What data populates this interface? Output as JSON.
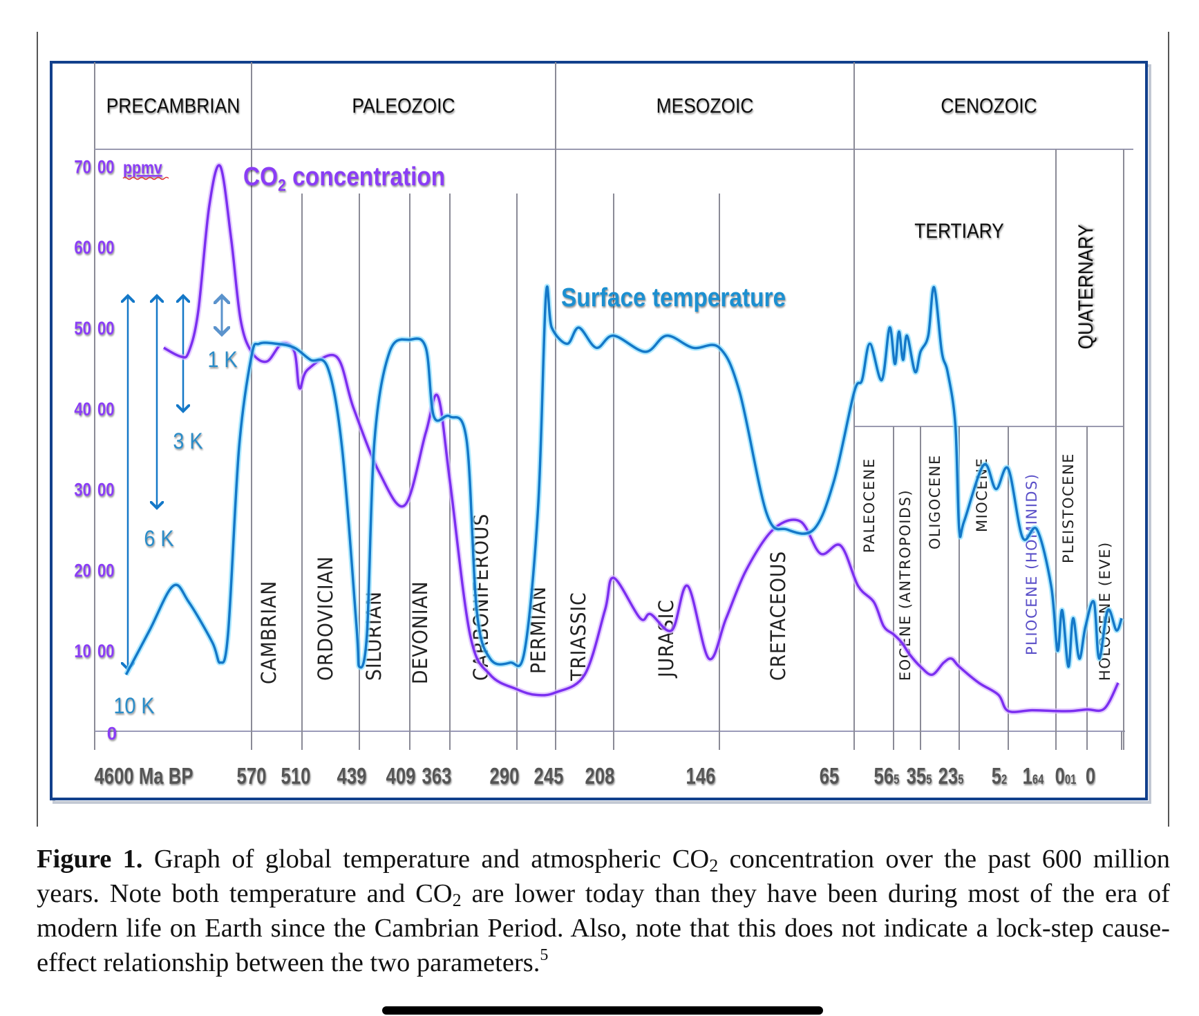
{
  "figure": {
    "caption": {
      "label": "Figure 1.",
      "part1": " Graph of global temperature and atmospheric CO",
      "sub1": "2",
      "part2": " concentration over the past 600 million years. Note both temperature and CO",
      "sub2": "2",
      "part3": " are lower today than they have been during most of the era of modern life on Earth since the Cambrian Period. Also, note that this does not indicate a lock-step cause-effect relationship between the two parameters.",
      "footnote": "5"
    }
  },
  "chart_data": {
    "type": "line",
    "title": "",
    "xlabel": "Ma BP",
    "ylabel": "ppmv",
    "colors": {
      "co2": "#7b2ff0",
      "temperature": "#1478c8",
      "co2_label": "#8a3cf5",
      "temp_label": "#1a8fd0",
      "axis_text": "#555555",
      "ytick_text": "#8a3cf5",
      "frame": "#12408c",
      "grid": "#8a8a96"
    },
    "eras": [
      {
        "name": "PRECAMBRIAN",
        "from_tick": 0,
        "to_tick": 1
      },
      {
        "name": "PALEOZOIC",
        "from_tick": 1,
        "to_tick": 7
      },
      {
        "name": "MESOZOIC",
        "from_tick": 7,
        "to_tick": 10
      },
      {
        "name": "CENOZOIC",
        "from_tick": 10,
        "to_tick": 17
      }
    ],
    "suberas": [
      {
        "name": "TERTIARY",
        "from_tick": 10,
        "to_tick": 15,
        "orientation": "horizontal"
      },
      {
        "name": "QUATERNARY",
        "from_tick": 15,
        "to_tick": 17,
        "orientation": "vertical"
      }
    ],
    "periods": [
      {
        "name": "CAMBRIAN",
        "from_tick": 1,
        "to_tick": 2
      },
      {
        "name": "ORDOVICIAN",
        "from_tick": 2,
        "to_tick": 3
      },
      {
        "name": "SILURIAN",
        "from_tick": 3,
        "to_tick": 4
      },
      {
        "name": "DEVONIAN",
        "from_tick": 4,
        "to_tick": 5
      },
      {
        "name": "CARBONIFEROUS",
        "from_tick": 5,
        "to_tick": 6
      },
      {
        "name": "PERMIAN",
        "from_tick": 6,
        "to_tick": 7
      },
      {
        "name": "TRIASSIC",
        "from_tick": 7,
        "to_tick": 8
      },
      {
        "name": "JURASIC",
        "from_tick": 8,
        "to_tick": 9
      },
      {
        "name": "CRETACEOUS",
        "from_tick": 9,
        "to_tick": 10
      }
    ],
    "epochs": [
      {
        "name": "PALEOCENE",
        "from_tick": 10,
        "to_tick": 11
      },
      {
        "name": "EOCENE (ANTROPOIDS)",
        "from_tick": 11,
        "to_tick": 12
      },
      {
        "name": "OLIGOCENE",
        "from_tick": 12,
        "to_tick": 13
      },
      {
        "name": "MIOCENE",
        "from_tick": 13,
        "to_tick": 14
      },
      {
        "name": "PLIOCENE (HOMINIDS)",
        "from_tick": 14,
        "to_tick": 15
      },
      {
        "name": "PLEISTOCENE",
        "from_tick": 15,
        "to_tick": 16
      },
      {
        "name": "HOLOCENE (EVE)",
        "from_tick": 16,
        "to_tick": 17
      }
    ],
    "x_ticks": [
      {
        "label": "4600 Ma BP"
      },
      {
        "label": "570"
      },
      {
        "label": "510"
      },
      {
        "label": "439"
      },
      {
        "label": "409"
      },
      {
        "label": "363"
      },
      {
        "label": "290"
      },
      {
        "label": "245"
      },
      {
        "label": "208"
      },
      {
        "label": "146"
      },
      {
        "label": "65"
      },
      {
        "label": "56.5"
      },
      {
        "label": "35.5"
      },
      {
        "label": "23.5"
      },
      {
        "label": "5.2"
      },
      {
        "label": "1.64"
      },
      {
        "label": "0.01"
      },
      {
        "label": "0"
      }
    ],
    "y_ticks": [
      {
        "value": 0,
        "label": "0"
      },
      {
        "value": 1000,
        "label": "10 00"
      },
      {
        "value": 2000,
        "label": "20 00"
      },
      {
        "value": 3000,
        "label": "30 00"
      },
      {
        "value": 4000,
        "label": "40 00"
      },
      {
        "value": 5000,
        "label": "50 00"
      },
      {
        "value": 6000,
        "label": "60 00"
      },
      {
        "value": 7000,
        "label": "70 00"
      }
    ],
    "y_unit_label": "ppmv",
    "ylim": [
      0,
      7000
    ],
    "series": [
      {
        "name": "CO2 concentration",
        "label": "CO",
        "label_sub": "2",
        "label_rest": " concentration",
        "points_tick_ppmv": [
          [
            0.44,
            4750
          ],
          [
            0.55,
            4640
          ],
          [
            0.6,
            4700
          ],
          [
            0.66,
            5200
          ],
          [
            0.73,
            6500
          ],
          [
            0.8,
            7000
          ],
          [
            0.87,
            6100
          ],
          [
            0.93,
            5100
          ],
          [
            1.0,
            4700
          ],
          [
            1.3,
            4580
          ],
          [
            1.6,
            4800
          ],
          [
            1.85,
            4700
          ],
          [
            1.95,
            4250
          ],
          [
            2.1,
            4480
          ],
          [
            2.6,
            4640
          ],
          [
            2.9,
            4000
          ],
          [
            3.4,
            3200
          ],
          [
            3.9,
            2800
          ],
          [
            4.4,
            3700
          ],
          [
            4.7,
            4150
          ],
          [
            5.0,
            3100
          ],
          [
            5.3,
            1200
          ],
          [
            5.6,
            700
          ],
          [
            6.0,
            520
          ],
          [
            6.5,
            450
          ],
          [
            7.0,
            480
          ],
          [
            7.5,
            700
          ],
          [
            7.85,
            1500
          ],
          [
            8.0,
            1900
          ],
          [
            8.25,
            1400
          ],
          [
            8.35,
            1450
          ],
          [
            8.55,
            1250
          ],
          [
            8.7,
            1800
          ],
          [
            8.9,
            900
          ],
          [
            9.05,
            1400
          ],
          [
            9.2,
            2000
          ],
          [
            9.4,
            2500
          ],
          [
            9.6,
            2600
          ],
          [
            9.75,
            2200
          ],
          [
            9.9,
            2300
          ],
          [
            10.1,
            1800
          ],
          [
            10.5,
            1600
          ],
          [
            10.75,
            1300
          ],
          [
            11.0,
            1200
          ],
          [
            11.3,
            1100
          ],
          [
            11.6,
            950
          ],
          [
            12.0,
            800
          ],
          [
            12.3,
            700
          ],
          [
            12.6,
            850
          ],
          [
            12.8,
            900
          ],
          [
            13.0,
            800
          ],
          [
            13.4,
            600
          ],
          [
            13.8,
            450
          ],
          [
            14.0,
            250
          ],
          [
            14.5,
            260
          ],
          [
            15.0,
            250
          ],
          [
            15.5,
            250
          ],
          [
            16.0,
            270
          ],
          [
            16.5,
            280
          ],
          [
            16.9,
            600
          ]
        ]
      },
      {
        "name": "Surface temperature",
        "label": "Surface temperature",
        "points_tick_ppmv": [
          [
            0.2,
            700
          ],
          [
            0.35,
            1250
          ],
          [
            0.5,
            1800
          ],
          [
            0.6,
            1600
          ],
          [
            0.75,
            1100
          ],
          [
            0.8,
            850
          ],
          [
            0.85,
            1200
          ],
          [
            0.92,
            3500
          ],
          [
            1.0,
            4650
          ],
          [
            1.15,
            4800
          ],
          [
            1.5,
            4800
          ],
          [
            1.85,
            4750
          ],
          [
            2.15,
            4600
          ],
          [
            2.45,
            4500
          ],
          [
            2.7,
            3500
          ],
          [
            2.95,
            1300
          ],
          [
            3.0,
            800
          ],
          [
            3.15,
            1200
          ],
          [
            3.3,
            3600
          ],
          [
            3.6,
            4700
          ],
          [
            4.0,
            4850
          ],
          [
            4.4,
            4750
          ],
          [
            4.6,
            3900
          ],
          [
            5.0,
            3900
          ],
          [
            5.25,
            3600
          ],
          [
            5.4,
            1500
          ],
          [
            5.6,
            900
          ],
          [
            5.9,
            850
          ],
          [
            6.2,
            1000
          ],
          [
            6.55,
            2800
          ],
          [
            6.75,
            5400
          ],
          [
            6.9,
            5000
          ],
          [
            7.2,
            4800
          ],
          [
            7.4,
            5000
          ],
          [
            7.7,
            4750
          ],
          [
            8.0,
            4900
          ],
          [
            8.3,
            4700
          ],
          [
            8.5,
            4900
          ],
          [
            8.75,
            4750
          ],
          [
            9.0,
            4750
          ],
          [
            9.15,
            4200
          ],
          [
            9.35,
            2700
          ],
          [
            9.5,
            2500
          ],
          [
            9.7,
            2500
          ],
          [
            9.85,
            3100
          ],
          [
            10.0,
            4200
          ],
          [
            10.2,
            4350
          ],
          [
            10.4,
            4800
          ],
          [
            10.7,
            4350
          ],
          [
            10.9,
            5000
          ],
          [
            11.05,
            4550
          ],
          [
            11.2,
            4950
          ],
          [
            11.35,
            4600
          ],
          [
            11.5,
            4900
          ],
          [
            11.8,
            4450
          ],
          [
            12.0,
            4700
          ],
          [
            12.2,
            4900
          ],
          [
            12.35,
            5500
          ],
          [
            12.55,
            4700
          ],
          [
            12.7,
            4450
          ],
          [
            12.9,
            3800
          ],
          [
            13.0,
            2500
          ],
          [
            13.1,
            2600
          ],
          [
            13.5,
            3300
          ],
          [
            13.75,
            3000
          ],
          [
            14.0,
            3250
          ],
          [
            14.3,
            2400
          ],
          [
            14.6,
            2500
          ],
          [
            14.9,
            1800
          ],
          [
            15.05,
            1000
          ],
          [
            15.2,
            1500
          ],
          [
            15.4,
            800
          ],
          [
            15.55,
            1400
          ],
          [
            15.75,
            900
          ],
          [
            15.95,
            1300
          ],
          [
            16.2,
            1600
          ],
          [
            16.35,
            900
          ],
          [
            16.6,
            1500
          ],
          [
            16.85,
            1250
          ],
          [
            17.0,
            1400
          ]
        ]
      }
    ],
    "annotations": [
      {
        "text": "1 K",
        "kind": "temp-scale"
      },
      {
        "text": "3 K",
        "kind": "temp-scale"
      },
      {
        "text": "6 K",
        "kind": "temp-scale"
      },
      {
        "text": "10 K",
        "kind": "temp-scale"
      }
    ],
    "grid": true,
    "legend": "inline"
  }
}
